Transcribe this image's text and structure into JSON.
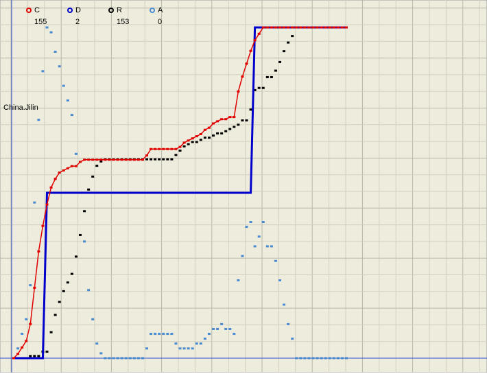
{
  "chart_data": {
    "type": "line",
    "annotation": "China.Jilin",
    "normalize": "per_series",
    "grid": true,
    "xlim": [
      0,
      80
    ],
    "x": [
      0,
      1,
      2,
      3,
      4,
      5,
      6,
      7,
      8,
      9,
      10,
      11,
      12,
      13,
      14,
      15,
      16,
      17,
      18,
      19,
      20,
      21,
      22,
      23,
      24,
      25,
      26,
      27,
      28,
      29,
      30,
      31,
      32,
      33,
      34,
      35,
      36,
      37,
      38,
      39,
      40,
      41,
      42,
      43,
      44,
      45,
      46,
      47,
      48,
      49,
      50,
      51,
      52,
      53,
      54,
      55,
      56,
      57,
      58,
      59,
      60,
      61,
      62,
      63,
      64,
      65,
      66,
      67,
      68,
      69,
      70,
      71,
      72,
      73,
      74,
      75,
      76,
      77,
      78,
      79,
      80
    ],
    "series": [
      {
        "name": "C",
        "color": "#e00000",
        "style": "line-markers",
        "values": [
          0,
          2,
          5,
          8,
          16,
          33,
          50,
          62,
          72,
          80,
          84,
          87,
          88,
          89,
          90,
          90,
          92,
          93,
          93,
          93,
          93,
          93,
          93,
          93,
          93,
          93,
          93,
          93,
          93,
          93,
          93,
          93,
          95,
          98,
          98,
          98,
          98,
          98,
          98,
          98,
          99,
          101,
          102,
          103,
          104,
          105,
          107,
          108,
          110,
          111,
          112,
          112,
          113,
          113,
          125,
          132,
          138,
          144,
          149,
          152,
          155,
          155,
          155,
          155,
          155,
          155,
          155,
          155,
          155,
          155,
          155,
          155,
          155,
          155,
          155,
          155,
          155,
          155,
          155,
          155,
          155
        ]
      },
      {
        "name": "D",
        "color": "#0000cc",
        "style": "line",
        "values": [
          0,
          0,
          0,
          0,
          0,
          0,
          0,
          0,
          1,
          1,
          1,
          1,
          1,
          1,
          1,
          1,
          1,
          1,
          1,
          1,
          1,
          1,
          1,
          1,
          1,
          1,
          1,
          1,
          1,
          1,
          1,
          1,
          1,
          1,
          1,
          1,
          1,
          1,
          1,
          1,
          1,
          1,
          1,
          1,
          1,
          1,
          1,
          1,
          1,
          1,
          1,
          1,
          1,
          1,
          1,
          1,
          1,
          1,
          2,
          2,
          2,
          2,
          2,
          2,
          2,
          2,
          2,
          2,
          2,
          2,
          2,
          2,
          2,
          2,
          2,
          2,
          2,
          2,
          2,
          2,
          2
        ]
      },
      {
        "name": "R",
        "color": "#000000",
        "style": "markers",
        "values": [
          0,
          0,
          0,
          0,
          1,
          1,
          1,
          3,
          3,
          12,
          20,
          26,
          31,
          35,
          39,
          47,
          57,
          68,
          78,
          84,
          89,
          91,
          92,
          92,
          92,
          92,
          92,
          92,
          92,
          92,
          92,
          92,
          92,
          92,
          92,
          92,
          92,
          92,
          92,
          94,
          96,
          98,
          99,
          100,
          100,
          101,
          102,
          102,
          103,
          104,
          104,
          105,
          106,
          107,
          108,
          110,
          110,
          115,
          124,
          125,
          125,
          130,
          130,
          133,
          137,
          142,
          146,
          149,
          153,
          null,
          null,
          null,
          null,
          null,
          null,
          null,
          null,
          null,
          null,
          null,
          null
        ]
      },
      {
        "name": "A",
        "color": "#4a8ad0",
        "style": "markers",
        "values": [
          0,
          2,
          5,
          8,
          15,
          32,
          49,
          59,
          68,
          67,
          63,
          60,
          56,
          53,
          50,
          42,
          34,
          24,
          14,
          8,
          3,
          1,
          0,
          0,
          0,
          0,
          0,
          0,
          0,
          0,
          0,
          0,
          2,
          5,
          5,
          5,
          5,
          5,
          5,
          3,
          2,
          2,
          2,
          2,
          3,
          3,
          4,
          5,
          6,
          6,
          7,
          6,
          6,
          5,
          16,
          21,
          27,
          28,
          23,
          25,
          28,
          23,
          23,
          20,
          16,
          11,
          7,
          4,
          0,
          0,
          0,
          0,
          0,
          0,
          0,
          0,
          0,
          0,
          0,
          0,
          0
        ]
      }
    ]
  }
}
